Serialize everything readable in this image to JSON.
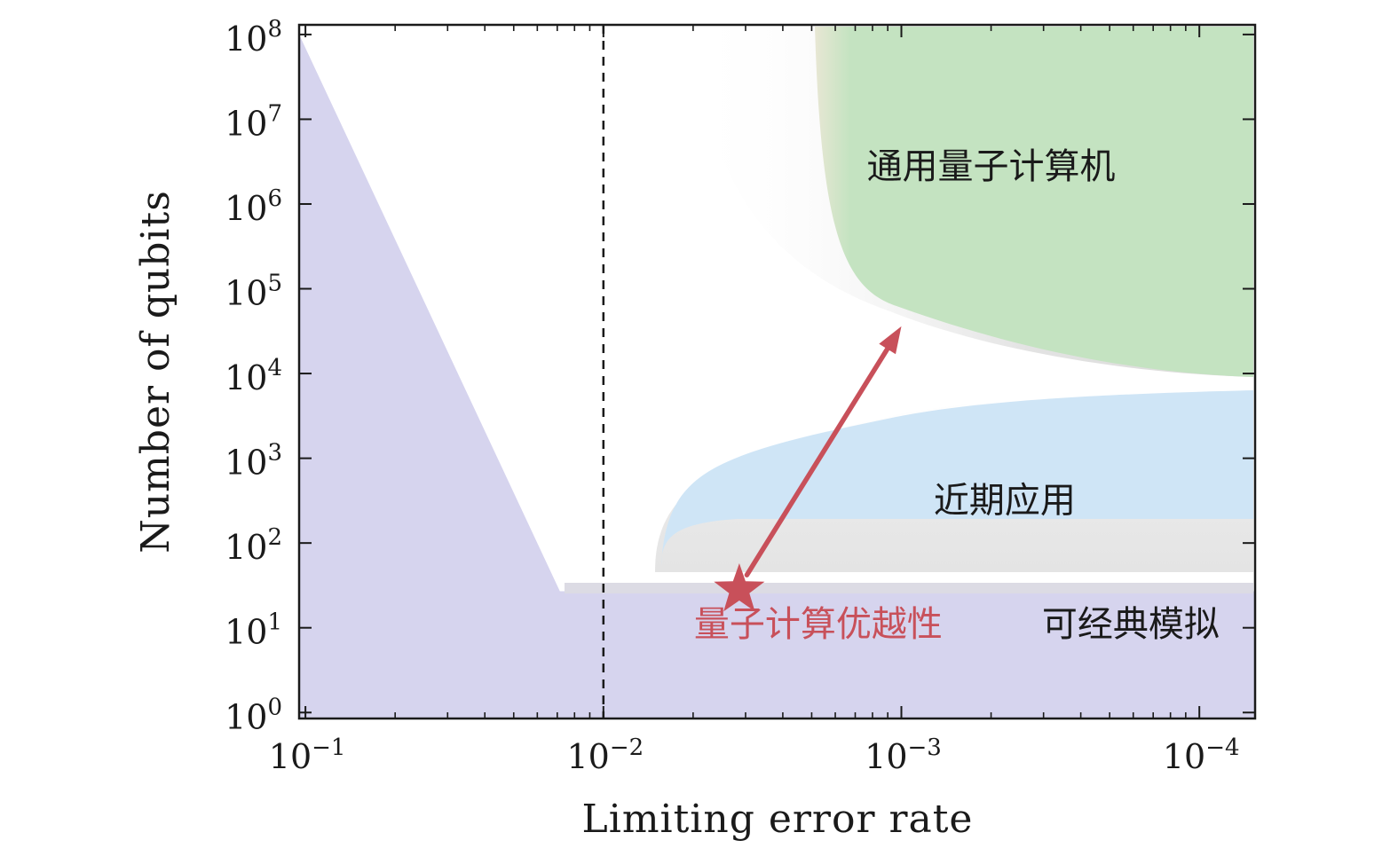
{
  "chart_data": {
    "type": "area",
    "xlabel": "Limiting error rate",
    "ylabel": "Number of qubits",
    "x_scale": "log-reversed",
    "y_scale": "log",
    "xlim": [
      0.105,
      6.5e-05
    ],
    "ylim": [
      0.85,
      130000000
    ],
    "x_ticks": [
      {
        "value": 0.1,
        "base": "10",
        "exp": "−1"
      },
      {
        "value": 0.01,
        "base": "10",
        "exp": "−2"
      },
      {
        "value": 0.001,
        "base": "10",
        "exp": "−3"
      },
      {
        "value": 0.0001,
        "base": "10",
        "exp": "−4"
      }
    ],
    "y_ticks": [
      {
        "value": 1,
        "base": "10",
        "exp": "0"
      },
      {
        "value": 10,
        "base": "10",
        "exp": "1"
      },
      {
        "value": 100,
        "base": "10",
        "exp": "2"
      },
      {
        "value": 1000,
        "base": "10",
        "exp": "3"
      },
      {
        "value": 10000,
        "base": "10",
        "exp": "4"
      },
      {
        "value": 100000,
        "base": "10",
        "exp": "5"
      },
      {
        "value": 1000000,
        "base": "10",
        "exp": "6"
      },
      {
        "value": 10000000,
        "base": "10",
        "exp": "7"
      },
      {
        "value": 100000000,
        "base": "10",
        "exp": "8"
      }
    ],
    "threshold_line": {
      "x": 0.01,
      "style": "dashed"
    },
    "regions": [
      {
        "key": "classical",
        "label": "可经典模拟",
        "color": "#d6d4ee",
        "boundary": [
          [
            0.102,
            100000000
          ],
          [
            0.014,
            27
          ]
        ],
        "label_at": [
          0.00017,
          8
        ]
      },
      {
        "key": "near_term",
        "label": "近期应用",
        "color": "#cfe5f6",
        "label_at": [
          0.00045,
          230
        ]
      },
      {
        "key": "universal",
        "label": "通用量子计算机",
        "color": "#c4e3c1",
        "label_at": [
          0.0005,
          2000000
        ]
      }
    ],
    "advantage": {
      "label": "量子计算优越性",
      "color": "#c8505a",
      "star": [
        0.0035,
        28
      ],
      "label_at": [
        0.0019,
        8
      ],
      "arrow_from": [
        0.0033,
        42
      ],
      "arrow_to": [
        0.001,
        36000
      ]
    }
  }
}
